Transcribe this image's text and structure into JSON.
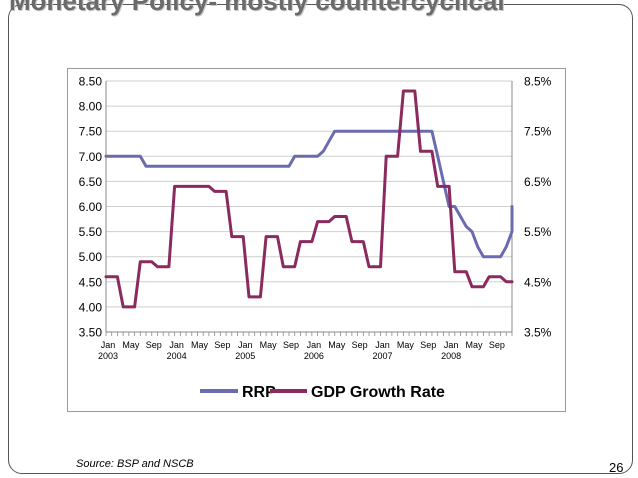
{
  "slide": {
    "title": "Monetary Policy- mostly countercyclical",
    "source": "Source: BSP and NSCB",
    "page_number": "26"
  },
  "chart_data": {
    "type": "line",
    "title": "",
    "xlabel": "",
    "ylabel": "",
    "y_left": {
      "range": [
        3.5,
        8.5
      ],
      "ticks": [
        "3.50",
        "4.00",
        "4.50",
        "5.00",
        "5.50",
        "6.00",
        "6.50",
        "7.00",
        "7.50",
        "8.00",
        "8.50"
      ]
    },
    "y_right": {
      "range": [
        3.5,
        8.5
      ],
      "ticks": [
        "3.5%",
        "4.5%",
        "5.5%",
        "6.5%",
        "7.5%",
        "8.5%"
      ]
    },
    "x_tick_labels": [
      "Jan",
      "May",
      "Sep",
      "Jan",
      "May",
      "Sep",
      "Jan",
      "May",
      "Sep",
      "Jan",
      "May",
      "Sep",
      "Jan",
      "May",
      "Sep",
      "Jan",
      "May",
      "Sep"
    ],
    "year_labels": [
      {
        "label": "2003",
        "month_index": 0
      },
      {
        "label": "2004",
        "month_index": 12
      },
      {
        "label": "2005",
        "month_index": 24
      },
      {
        "label": "2006",
        "month_index": 36
      },
      {
        "label": "2007",
        "month_index": 48
      },
      {
        "label": "2008",
        "month_index": 60
      }
    ],
    "x_range_months": [
      0,
      71
    ],
    "legend_position": "bottom",
    "grid": true,
    "series": [
      {
        "name": "RRP",
        "axis": "left",
        "color": "#6b6bb0",
        "points": [
          [
            0,
            7.0
          ],
          [
            2,
            7.0
          ],
          [
            4,
            7.0
          ],
          [
            6,
            7.0
          ],
          [
            7,
            6.8
          ],
          [
            10,
            6.8
          ],
          [
            12,
            6.8
          ],
          [
            16,
            6.8
          ],
          [
            20,
            6.8
          ],
          [
            24,
            6.8
          ],
          [
            28,
            6.8
          ],
          [
            32,
            6.8
          ],
          [
            33,
            7.0
          ],
          [
            36,
            7.0
          ],
          [
            37,
            7.0
          ],
          [
            38,
            7.1
          ],
          [
            39,
            7.3
          ],
          [
            40,
            7.5
          ],
          [
            44,
            7.5
          ],
          [
            48,
            7.5
          ],
          [
            52,
            7.5
          ],
          [
            56,
            7.5
          ],
          [
            57,
            7.5
          ],
          [
            58,
            7.0
          ],
          [
            59,
            6.5
          ],
          [
            60,
            6.0
          ],
          [
            61,
            6.0
          ],
          [
            62,
            5.8
          ],
          [
            63,
            5.6
          ],
          [
            64,
            5.5
          ],
          [
            65,
            5.2
          ],
          [
            66,
            5.0
          ],
          [
            68,
            5.0
          ],
          [
            69,
            5.0
          ],
          [
            70,
            5.2
          ],
          [
            71,
            5.5
          ],
          [
            72,
            5.8
          ],
          [
            73,
            6.0
          ],
          [
            74,
            6.0
          ],
          [
            75,
            6.0
          ],
          [
            76,
            5.8
          ]
        ]
      },
      {
        "name": "GDP Growth Rate",
        "axis": "right",
        "color": "#8b2a5e",
        "points": [
          [
            0,
            4.6
          ],
          [
            2,
            4.6
          ],
          [
            3,
            4.0
          ],
          [
            5,
            4.0
          ],
          [
            6,
            4.9
          ],
          [
            8,
            4.9
          ],
          [
            9,
            4.8
          ],
          [
            11,
            4.8
          ],
          [
            12,
            6.4
          ],
          [
            14,
            6.4
          ],
          [
            16,
            6.4
          ],
          [
            18,
            6.4
          ],
          [
            19,
            6.3
          ],
          [
            21,
            6.3
          ],
          [
            22,
            5.4
          ],
          [
            24,
            5.4
          ],
          [
            25,
            4.2
          ],
          [
            27,
            4.2
          ],
          [
            28,
            5.4
          ],
          [
            30,
            5.4
          ],
          [
            31,
            4.8
          ],
          [
            33,
            4.8
          ],
          [
            34,
            5.3
          ],
          [
            36,
            5.3
          ],
          [
            37,
            5.7
          ],
          [
            39,
            5.7
          ],
          [
            40,
            5.8
          ],
          [
            42,
            5.8
          ],
          [
            43,
            5.3
          ],
          [
            45,
            5.3
          ],
          [
            46,
            4.8
          ],
          [
            48,
            4.8
          ],
          [
            49,
            7.0
          ],
          [
            51,
            7.0
          ],
          [
            52,
            8.3
          ],
          [
            54,
            8.3
          ],
          [
            55,
            7.1
          ],
          [
            57,
            7.1
          ],
          [
            58,
            6.4
          ],
          [
            60,
            6.4
          ],
          [
            61,
            4.7
          ],
          [
            63,
            4.7
          ],
          [
            64,
            4.4
          ],
          [
            66,
            4.4
          ],
          [
            67,
            4.6
          ],
          [
            69,
            4.6
          ],
          [
            70,
            4.5
          ],
          [
            72,
            4.5
          ]
        ]
      }
    ]
  }
}
